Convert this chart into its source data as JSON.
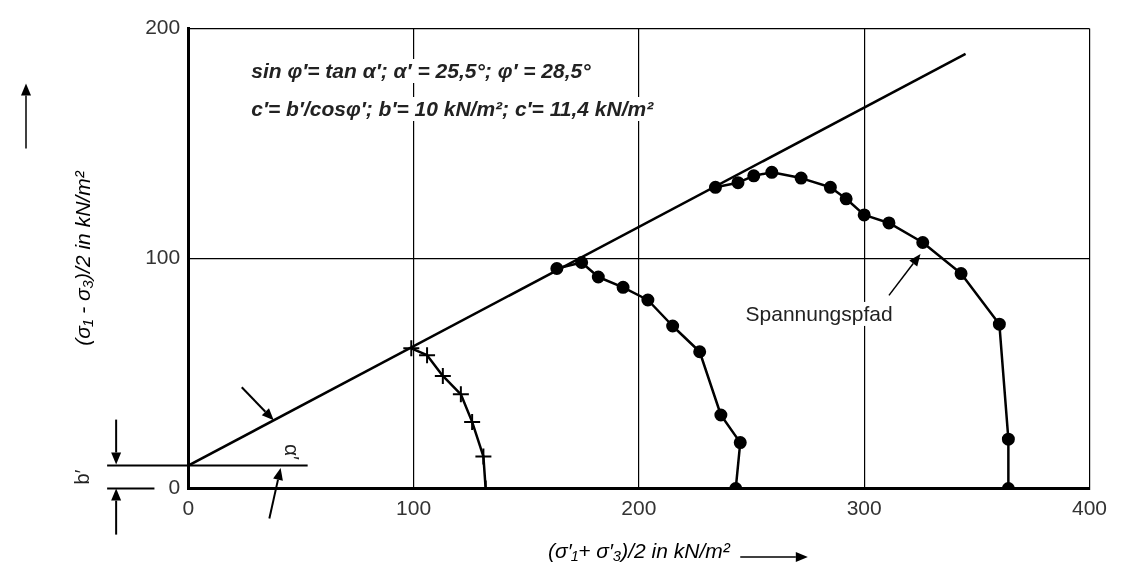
{
  "chart_data": {
    "type": "line",
    "xlabel": "(σ′₁+ σ′₃)/2 in kN/m²",
    "ylabel": "(σ₁ - σ₃)/2 in kN/m²",
    "xlim": [
      0,
      400
    ],
    "ylim": [
      0,
      200
    ],
    "xticks": [
      0,
      100,
      200,
      300,
      400
    ],
    "yticks": [
      0,
      100,
      200
    ],
    "grid": true,
    "series": [
      {
        "color": "#000000",
        "marker": "none",
        "x": [
          0,
          345
        ],
        "values": [
          10,
          189
        ]
      },
      {
        "color": "#000000",
        "marker": "cross",
        "x": [
          99,
          106,
          113,
          121,
          126,
          131,
          132
        ],
        "values": [
          61,
          58,
          49,
          41,
          29,
          14,
          0
        ]
      },
      {
        "color": "#000000",
        "marker": "circle",
        "x": [
          163.6,
          174.6,
          182,
          193,
          204,
          215,
          227,
          236.4,
          245,
          243
        ],
        "values": [
          95.7,
          98.3,
          92,
          87.5,
          82,
          70.7,
          59.5,
          32,
          20,
          0
        ]
      },
      {
        "color": "#000000",
        "marker": "circle",
        "x": [
          234,
          244,
          251,
          259,
          272,
          285,
          292,
          300,
          311,
          326,
          343,
          360,
          364,
          364
        ],
        "values": [
          131,
          133,
          136,
          137.5,
          135,
          131,
          126,
          119,
          115.5,
          107,
          93.5,
          71.5,
          21.5,
          0
        ]
      }
    ],
    "ref_lines": [
      {
        "axis": "y",
        "value": 10,
        "label": "b′"
      }
    ],
    "annotations": [
      "sin φ′= tan α′; α′ = 25,5°; φ′ = 28,5°",
      "c′= b′/cosφ′; b′= 10 kN/m²; c′= 11,4 kN/m²",
      "α′",
      "Spannungspfad"
    ]
  }
}
